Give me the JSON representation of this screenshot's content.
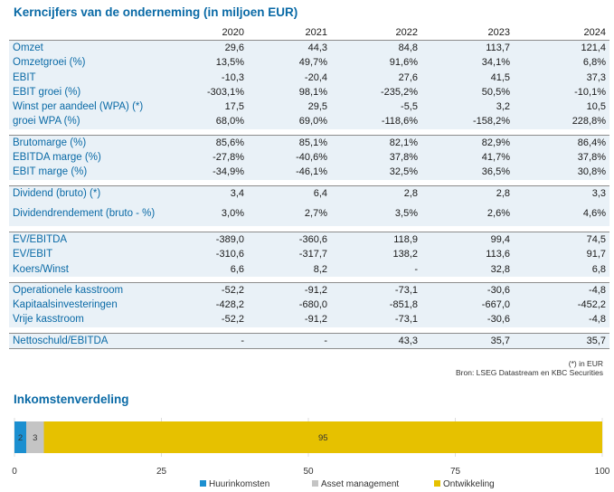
{
  "title": "Kerncijfers van de onderneming (in miljoen EUR)",
  "years": [
    "2020",
    "2021",
    "2022",
    "2023",
    "2024"
  ],
  "groups": [
    {
      "rows": [
        {
          "label": "Omzet",
          "values": [
            "29,6",
            "44,3",
            "84,8",
            "113,7",
            "121,4"
          ]
        },
        {
          "label": "Omzetgroei (%)",
          "values": [
            "13,5%",
            "49,7%",
            "91,6%",
            "34,1%",
            "6,8%"
          ]
        },
        {
          "label": "EBIT",
          "values": [
            "-10,3",
            "-20,4",
            "27,6",
            "41,5",
            "37,3"
          ]
        },
        {
          "label": "EBIT groei (%)",
          "values": [
            "-303,1%",
            "98,1%",
            "-235,2%",
            "50,5%",
            "-10,1%"
          ]
        },
        {
          "label": "Winst per aandeel (WPA) (*)",
          "values": [
            "17,5",
            "29,5",
            "-5,5",
            "3,2",
            "10,5"
          ]
        },
        {
          "label": "groei WPA (%)",
          "values": [
            "68,0%",
            "69,0%",
            "-118,6%",
            "-158,2%",
            "228,8%"
          ]
        }
      ]
    },
    {
      "rows": [
        {
          "label": "Brutomarge (%)",
          "values": [
            "85,6%",
            "85,1%",
            "82,1%",
            "82,9%",
            "86,4%"
          ]
        },
        {
          "label": "EBITDA marge (%)",
          "values": [
            "-27,8%",
            "-40,6%",
            "37,8%",
            "41,7%",
            "37,8%"
          ]
        },
        {
          "label": "EBIT marge (%)",
          "values": [
            "-34,9%",
            "-46,1%",
            "32,5%",
            "36,5%",
            "30,8%"
          ]
        }
      ]
    },
    {
      "rows": [
        {
          "label": "Dividend (bruto) (*)",
          "values": [
            "3,4",
            "6,4",
            "2,8",
            "2,8",
            "3,3"
          ]
        },
        {
          "label": "Dividendrendement (bruto - %)",
          "values": [
            "3,0%",
            "2,7%",
            "3,5%",
            "2,6%",
            "4,6%"
          ],
          "tall": true
        }
      ]
    },
    {
      "rows": [
        {
          "label": "EV/EBITDA",
          "values": [
            "-389,0",
            "-360,6",
            "118,9",
            "99,4",
            "74,5"
          ]
        },
        {
          "label": "EV/EBIT",
          "values": [
            "-310,6",
            "-317,7",
            "138,2",
            "113,6",
            "91,7"
          ]
        },
        {
          "label": "Koers/Winst",
          "values": [
            "6,6",
            "8,2",
            "-",
            "32,8",
            "6,8"
          ]
        }
      ]
    },
    {
      "rows": [
        {
          "label": "Operationele kasstroom",
          "values": [
            "-52,2",
            "-91,2",
            "-73,1",
            "-30,6",
            "-4,8"
          ]
        },
        {
          "label": "Kapitaalsinvesteringen",
          "values": [
            "-428,2",
            "-680,0",
            "-851,8",
            "-667,0",
            "-452,2"
          ]
        },
        {
          "label": "Vrije kasstroom",
          "values": [
            "-52,2",
            "-91,2",
            "-73,1",
            "-30,6",
            "-4,8"
          ]
        }
      ]
    },
    {
      "rows": [
        {
          "label": "Nettoschuld/EBITDA",
          "values": [
            "-",
            "-",
            "43,3",
            "35,7",
            "35,7"
          ]
        }
      ]
    }
  ],
  "footnote": "(*) in EUR",
  "source": "Bron: LSEG Datastream en KBC Securities",
  "section_title": "Inkomstenverdeling",
  "colors": {
    "accent": "#0a6aa6",
    "row_band": "#e9f1f7"
  },
  "chart_data": {
    "type": "bar",
    "orientation": "horizontal-stacked",
    "title": "Inkomstenverdeling",
    "series": [
      {
        "name": "Huurinkomsten",
        "values": [
          2
        ],
        "label": "2",
        "color": "#1b8fd0"
      },
      {
        "name": "Asset management",
        "values": [
          3
        ],
        "label": "3",
        "color": "#c4c4c4"
      },
      {
        "name": "Ontwikkeling",
        "values": [
          95
        ],
        "label": "95",
        "color": "#e6c100"
      }
    ],
    "xlim": [
      0,
      100
    ],
    "xticks": [
      "0",
      "25",
      "50",
      "75",
      "100"
    ],
    "grid": true,
    "legend": "bottom"
  }
}
